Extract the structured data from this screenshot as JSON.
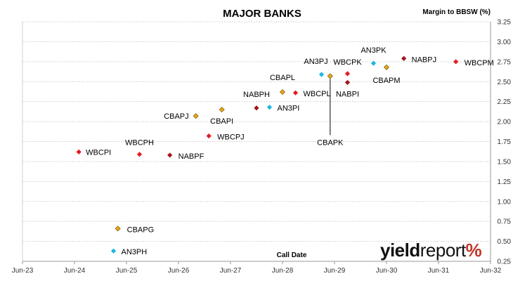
{
  "chart_data": {
    "type": "scatter",
    "title": "MAJOR BANKS",
    "ylabel": "Margin to BBSW (%)",
    "xlabel": "Call Date",
    "y_ticks": [
      "0.25",
      "0.50",
      "0.75",
      "1.00",
      "1.25",
      "1.50",
      "1.75",
      "2.00",
      "2.25",
      "2.50",
      "2.75",
      "3.00",
      "3.25"
    ],
    "ylim": [
      0.25,
      3.25
    ],
    "x_ticks": [
      "Jun-23",
      "Jun-24",
      "Jun-25",
      "Jun-26",
      "Jun-27",
      "Jun-28",
      "Jun-29",
      "Jun-30",
      "Jun-31",
      "Jun-32"
    ],
    "xlim": [
      "2023-06",
      "2032-06"
    ],
    "grid": "horizontal dotted",
    "colors": {
      "WBC": "#e8191f",
      "NAB": "#a3141a",
      "CBA": "#e6a817",
      "ANZ": "#1ab7e0"
    },
    "points": [
      {
        "label": "WBCPI",
        "issuer": "WBC",
        "date": "2024-07",
        "y": 1.62
      },
      {
        "label": "WBCPH",
        "issuer": "WBC",
        "date": "2025-09",
        "y": 1.59
      },
      {
        "label": "NABPF",
        "issuer": "NAB",
        "date": "2026-04",
        "y": 1.58
      },
      {
        "label": "CBAPJ",
        "issuer": "CBA",
        "date": "2026-10",
        "y": 2.07
      },
      {
        "label": "CBAPI",
        "issuer": "CBA",
        "date": "2027-04",
        "y": 2.15
      },
      {
        "label": "WBCPJ",
        "issuer": "WBC",
        "date": "2027-01",
        "y": 1.82
      },
      {
        "label": "NABPH",
        "issuer": "NAB",
        "date": "2027-12",
        "y": 2.17
      },
      {
        "label": "AN3PI",
        "issuer": "ANZ",
        "date": "2028-03",
        "y": 2.18
      },
      {
        "label": "CBAPL",
        "issuer": "CBA",
        "date": "2028-06",
        "y": 2.37
      },
      {
        "label": "WBCPL",
        "issuer": "WBC",
        "date": "2028-09",
        "y": 2.36
      },
      {
        "label": "AN3PJ",
        "issuer": "ANZ",
        "date": "2029-03",
        "y": 2.59
      },
      {
        "label": "CBAPK",
        "issuer": "CBA",
        "date": "2029-05",
        "y": 2.57
      },
      {
        "label": "WBCPK",
        "issuer": "WBC",
        "date": "2029-09",
        "y": 2.6
      },
      {
        "label": "NABPI",
        "issuer": "NAB",
        "date": "2029-09",
        "y": 2.49
      },
      {
        "label": "AN3PK",
        "issuer": "ANZ",
        "date": "2030-03",
        "y": 2.73
      },
      {
        "label": "CBAPM",
        "issuer": "CBA",
        "date": "2030-06",
        "y": 2.68
      },
      {
        "label": "NABPJ",
        "issuer": "NAB",
        "date": "2030-10",
        "y": 2.79
      },
      {
        "label": "WBCPM",
        "issuer": "WBC",
        "date": "2031-10",
        "y": 2.75
      },
      {
        "label": "CBAPG",
        "issuer": "CBA",
        "date": "2025-04",
        "y": 0.66
      },
      {
        "label": "AN3PH",
        "issuer": "ANZ",
        "date": "2025-03",
        "y": 0.38
      }
    ]
  },
  "logo": {
    "part1": "yield",
    "part2": "report",
    "part3": "%"
  }
}
